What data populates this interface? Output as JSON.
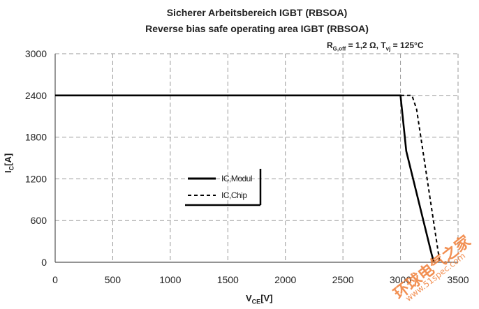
{
  "chart_data": {
    "type": "line",
    "title": "Sicherer Arbeitsbereich IGBT (RBSOA)",
    "subtitle": "Reverse bias safe operating area IGBT (RBSOA)",
    "annotation": {
      "r_symbol": "R",
      "r_sub": "G,off",
      "r_value": " = 1,2 Ω, ",
      "t_symbol": "T",
      "t_sub": "vj",
      "t_value": " = 125°C"
    },
    "xlabel": {
      "symbol": "V",
      "sub": "CE",
      "unit": "[V]"
    },
    "ylabel": {
      "symbol": "I",
      "sub": "C",
      "unit": "[A]"
    },
    "xlim": [
      0,
      3500
    ],
    "ylim": [
      0,
      3000
    ],
    "xticks": [
      0,
      500,
      1000,
      1500,
      2000,
      2500,
      3000,
      3500
    ],
    "yticks": [
      0,
      600,
      1200,
      1800,
      2400,
      3000
    ],
    "grid": true,
    "legend_position": "center-left",
    "series": [
      {
        "name": "IC,Modul",
        "style": "solid",
        "color": "#000000",
        "x": [
          0,
          3000,
          3050,
          3270,
          3290
        ],
        "y": [
          2400,
          2400,
          1600,
          120,
          0
        ]
      },
      {
        "name": "IC,Chip",
        "style": "dashed",
        "color": "#000000",
        "x": [
          0,
          3100,
          3140,
          3330,
          3340
        ],
        "y": [
          2400,
          2400,
          2200,
          120,
          0
        ]
      }
    ]
  },
  "watermark": {
    "text_cn": "环球电气之家",
    "text_url": "www.51spec.com",
    "color": "#f07d36"
  }
}
